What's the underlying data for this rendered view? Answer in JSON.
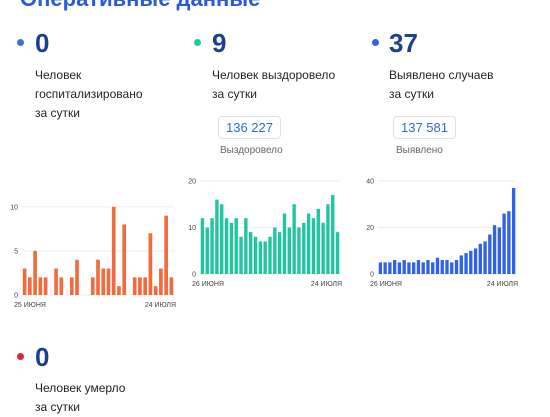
{
  "header": {
    "title": "Оперативные данные"
  },
  "stats": {
    "hospitalized": {
      "value": "0",
      "label_lines": [
        "Человек",
        "госпитализировано",
        "за сутки"
      ],
      "color": "#3f6fe0"
    },
    "recovered": {
      "value": "9",
      "label_lines": [
        "Человек выздоровело",
        "за сутки"
      ],
      "total": "136 227",
      "total_label": "Выздоровело",
      "color": "#1fc6a0"
    },
    "cases": {
      "value": "37",
      "label_lines": [
        "Выявлено случаев",
        "за сутки"
      ],
      "total": "137 581",
      "total_label": "Выявлено",
      "color": "#2f62e6"
    },
    "deaths": {
      "value": "0",
      "label_lines": [
        "Человек умерло",
        "за сутки"
      ],
      "color": "#d8262a"
    }
  },
  "chart_data": [
    {
      "type": "bar",
      "name": "hospitalized",
      "color": "#f26b3d",
      "y_ticks": [
        0,
        5,
        10
      ],
      "ylim": [
        0,
        11
      ],
      "x_tick_labels": [
        "25 июня",
        "24 июля"
      ],
      "values": [
        3,
        2,
        5,
        2,
        2,
        0,
        3,
        2,
        0,
        2,
        4,
        0,
        0,
        2,
        4,
        3,
        3,
        10,
        1,
        8,
        0,
        2,
        2,
        2,
        7,
        1,
        3,
        9,
        2
      ]
    },
    {
      "type": "bar",
      "name": "recovered",
      "color": "#1fc6a0",
      "y_ticks": [
        0,
        10,
        20
      ],
      "ylim": [
        0,
        20
      ],
      "x_tick_labels": [
        "26 июня",
        "24 июля"
      ],
      "values": [
        12,
        10,
        12,
        16,
        15,
        12,
        11,
        12,
        8,
        12,
        9,
        8,
        7,
        7,
        8,
        10,
        9,
        13,
        10,
        15,
        10,
        11,
        13,
        12,
        14,
        11,
        15,
        17,
        9
      ]
    },
    {
      "type": "bar",
      "name": "cases",
      "color": "#2f62e6",
      "y_ticks": [
        0,
        20,
        40
      ],
      "ylim": [
        0,
        40
      ],
      "x_tick_labels": [
        "26 июня",
        "24 июля"
      ],
      "values": [
        5,
        5,
        5,
        6,
        5,
        6,
        5,
        5,
        6,
        5,
        6,
        5,
        7,
        6,
        6,
        5,
        6,
        8,
        9,
        10,
        11,
        13,
        14,
        17,
        21,
        20,
        26,
        27,
        37
      ]
    }
  ]
}
